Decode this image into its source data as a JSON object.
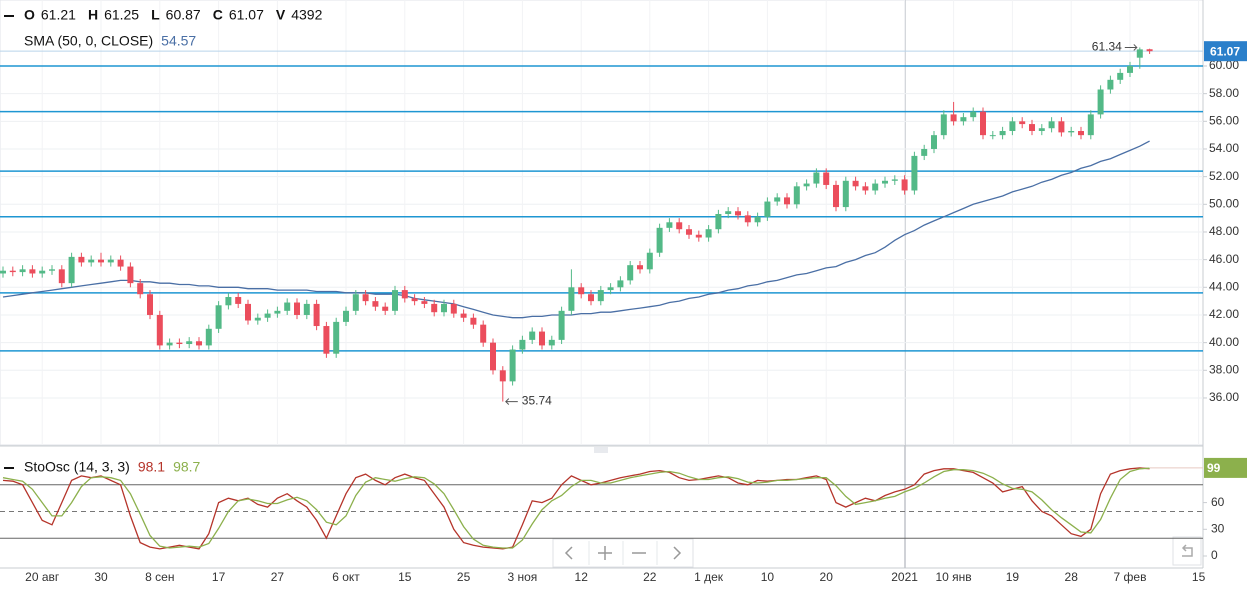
{
  "chart_data": [
    {
      "type": "candlestick",
      "header": [
        {
          "label": "O",
          "value": 61.21
        },
        {
          "label": "H",
          "value": 61.25
        },
        {
          "label": "L",
          "value": 60.87
        },
        {
          "label": "C",
          "value": 61.07
        },
        {
          "label": "V",
          "value": 4392
        }
      ],
      "categories": [
        null,
        null,
        null,
        null,
        "20 авг",
        null,
        null,
        null,
        null,
        null,
        "30",
        null,
        null,
        null,
        null,
        null,
        "8 сен",
        null,
        null,
        null,
        null,
        null,
        "17",
        null,
        null,
        null,
        null,
        null,
        "27",
        null,
        null,
        null,
        null,
        null,
        null,
        "6 окт",
        null,
        null,
        null,
        null,
        null,
        "15",
        null,
        null,
        null,
        null,
        null,
        "25",
        null,
        null,
        null,
        null,
        null,
        "3 ноя",
        null,
        null,
        null,
        null,
        null,
        "12",
        null,
        null,
        null,
        null,
        null,
        null,
        "22",
        null,
        null,
        null,
        null,
        null,
        "1 дек",
        null,
        null,
        null,
        null,
        null,
        "10",
        null,
        null,
        null,
        null,
        null,
        "20",
        null,
        null,
        null,
        null,
        null,
        null,
        null,
        "2021",
        null,
        null,
        null,
        null,
        "10 янв",
        null,
        null,
        null,
        null,
        null,
        "19",
        null,
        null,
        null,
        null,
        null,
        "28",
        null,
        null,
        null,
        null,
        null,
        "7 фев",
        null,
        null,
        null,
        null,
        null,
        null,
        "15"
      ],
      "open": [
        45.0,
        45.2,
        45.1,
        45.3,
        45.0,
        45.2,
        45.3,
        44.3,
        46.2,
        45.8,
        46.0,
        45.8,
        46.0,
        45.5,
        44.3,
        43.5,
        42.0,
        39.8,
        40.0,
        39.9,
        40.1,
        39.8,
        41.0,
        42.7,
        43.3,
        42.8,
        41.6,
        41.8,
        42.1,
        42.3,
        42.9,
        42.0,
        42.8,
        41.2,
        39.2,
        41.5,
        42.3,
        43.5,
        43.0,
        42.6,
        42.3,
        43.8,
        43.2,
        43.0,
        42.8,
        42.2,
        42.8,
        42.1,
        41.8,
        41.3,
        40.0,
        38.0,
        37.2,
        39.5,
        40.2,
        40.8,
        39.8,
        40.2,
        42.3,
        44.0,
        43.5,
        43.0,
        43.8,
        44.0,
        44.5,
        45.6,
        45.3,
        46.5,
        48.3,
        48.7,
        48.2,
        47.8,
        47.6,
        48.2,
        49.3,
        49.5,
        49.2,
        48.7,
        49.1,
        50.2,
        50.5,
        50.0,
        51.3,
        51.5,
        52.3,
        51.4,
        49.8,
        51.7,
        51.3,
        51.0,
        51.5,
        51.7,
        51.8,
        51.0,
        53.5,
        54.0,
        55.0,
        56.5,
        56.0,
        56.3,
        56.7,
        55.0,
        55.0,
        55.3,
        56.0,
        55.8,
        55.3,
        55.5,
        56.0,
        55.2,
        55.3,
        55.0,
        56.5,
        58.3,
        59.0,
        59.5,
        60.6,
        61.21,
        null,
        null,
        null,
        null,
        null
      ],
      "high": [
        45.5,
        45.5,
        45.6,
        45.6,
        45.5,
        45.6,
        45.6,
        46.5,
        46.5,
        46.3,
        46.5,
        46.3,
        46.3,
        45.8,
        44.6,
        43.8,
        42.3,
        40.3,
        40.3,
        40.4,
        40.4,
        41.3,
        43.0,
        43.6,
        43.6,
        43.1,
        42.1,
        42.4,
        42.6,
        43.2,
        43.2,
        43.1,
        43.1,
        41.5,
        41.8,
        42.6,
        43.8,
        43.8,
        43.3,
        42.9,
        44.1,
        44.1,
        43.5,
        43.3,
        43.1,
        43.1,
        43.1,
        42.4,
        42.1,
        41.6,
        40.3,
        38.3,
        39.8,
        40.5,
        41.1,
        41.1,
        40.5,
        42.6,
        45.3,
        44.3,
        43.8,
        44.1,
        44.3,
        44.8,
        45.9,
        45.9,
        46.8,
        48.6,
        49.0,
        49.0,
        48.5,
        48.1,
        48.5,
        49.6,
        49.8,
        49.8,
        49.5,
        49.4,
        50.5,
        50.8,
        50.8,
        51.6,
        51.8,
        52.6,
        52.6,
        51.7,
        52.0,
        52.0,
        51.6,
        51.8,
        52.0,
        52.1,
        52.1,
        53.8,
        54.3,
        55.3,
        56.8,
        57.4,
        56.6,
        57.0,
        57.0,
        55.3,
        55.6,
        56.3,
        56.3,
        56.1,
        55.8,
        56.3,
        56.3,
        55.6,
        55.6,
        56.8,
        58.6,
        59.3,
        59.8,
        60.3,
        61.34,
        61.25,
        null,
        null,
        null,
        null,
        null
      ],
      "low": [
        44.7,
        44.8,
        44.8,
        44.7,
        44.7,
        44.9,
        44.0,
        44.0,
        45.5,
        45.5,
        45.5,
        45.5,
        45.2,
        44.0,
        43.2,
        41.7,
        39.5,
        39.5,
        39.6,
        39.6,
        39.5,
        39.5,
        40.7,
        42.4,
        42.5,
        41.3,
        41.3,
        41.5,
        41.8,
        42.0,
        41.7,
        41.7,
        40.9,
        38.9,
        38.9,
        41.2,
        42.0,
        42.7,
        42.3,
        42.0,
        42.0,
        42.9,
        42.7,
        42.5,
        41.9,
        41.9,
        41.8,
        41.5,
        41.0,
        39.7,
        37.7,
        35.74,
        36.9,
        39.2,
        39.9,
        39.5,
        39.5,
        39.9,
        42.0,
        43.2,
        42.7,
        42.7,
        43.5,
        43.7,
        44.2,
        45.0,
        45.0,
        46.2,
        48.0,
        47.9,
        47.5,
        47.3,
        47.3,
        47.9,
        49.0,
        48.9,
        48.4,
        48.4,
        48.8,
        49.9,
        49.7,
        49.7,
        51.0,
        51.2,
        51.1,
        49.5,
        49.5,
        51.0,
        50.7,
        50.7,
        51.2,
        51.4,
        50.7,
        50.7,
        53.2,
        53.7,
        54.7,
        55.7,
        55.7,
        56.0,
        54.7,
        54.7,
        54.7,
        55.0,
        55.5,
        55.0,
        55.0,
        55.2,
        54.9,
        54.9,
        54.7,
        54.7,
        56.2,
        58.0,
        58.7,
        59.2,
        59.8,
        60.87,
        null,
        null,
        null,
        null,
        null
      ],
      "close": [
        45.2,
        45.1,
        45.3,
        45.0,
        45.2,
        45.3,
        44.3,
        46.2,
        45.8,
        46.0,
        45.8,
        46.0,
        45.5,
        44.3,
        43.5,
        42.0,
        39.8,
        40.0,
        39.9,
        40.1,
        39.8,
        41.0,
        42.7,
        43.3,
        42.8,
        41.6,
        41.8,
        42.1,
        42.3,
        42.9,
        42.0,
        42.8,
        41.2,
        39.2,
        41.5,
        42.3,
        43.5,
        43.0,
        42.6,
        42.3,
        43.8,
        43.2,
        43.0,
        42.8,
        42.2,
        42.8,
        42.1,
        41.8,
        41.3,
        40.0,
        38.0,
        37.2,
        39.5,
        40.2,
        40.8,
        39.8,
        40.2,
        42.3,
        44.0,
        43.5,
        43.0,
        43.8,
        44.0,
        44.5,
        45.6,
        45.3,
        46.5,
        48.3,
        48.7,
        48.2,
        47.8,
        47.6,
        48.2,
        49.3,
        49.5,
        49.2,
        48.7,
        49.1,
        50.2,
        50.5,
        50.0,
        51.3,
        51.5,
        52.3,
        51.4,
        49.8,
        51.7,
        51.3,
        51.0,
        51.5,
        51.7,
        51.8,
        51.0,
        53.5,
        54.0,
        55.0,
        56.5,
        56.0,
        56.3,
        56.7,
        55.0,
        55.0,
        55.3,
        56.0,
        55.8,
        55.3,
        55.5,
        56.0,
        55.2,
        55.3,
        55.0,
        56.5,
        58.3,
        59.0,
        59.5,
        60.0,
        61.2,
        61.07,
        null,
        null,
        null,
        null,
        null
      ],
      "up_color": "#53b987",
      "down_color": "#eb4d5c",
      "series": [
        {
          "name": "SMA (50, 0, CLOSE)",
          "color": "#4a6fa5",
          "last_value": 54.57,
          "values": [
            43.3,
            43.4,
            43.5,
            43.6,
            43.7,
            43.8,
            43.9,
            44.0,
            44.1,
            44.2,
            44.3,
            44.4,
            44.5,
            44.5,
            44.4,
            44.4,
            44.3,
            44.3,
            44.2,
            44.2,
            44.1,
            44.1,
            44.0,
            44.0,
            44.0,
            43.9,
            43.9,
            43.9,
            43.8,
            43.8,
            43.8,
            43.8,
            43.7,
            43.7,
            43.7,
            43.6,
            43.6,
            43.6,
            43.5,
            43.5,
            43.5,
            43.4,
            43.2,
            43.1,
            43.0,
            42.9,
            42.8,
            42.6,
            42.4,
            42.2,
            42.0,
            41.9,
            41.8,
            41.8,
            41.9,
            41.9,
            42.0,
            42.0,
            42.0,
            42.1,
            42.1,
            42.2,
            42.2,
            42.3,
            42.4,
            42.5,
            42.6,
            42.7,
            42.9,
            43.0,
            43.2,
            43.3,
            43.5,
            43.6,
            43.8,
            43.9,
            44.1,
            44.2,
            44.4,
            44.5,
            44.7,
            44.9,
            45.0,
            45.2,
            45.4,
            45.5,
            45.8,
            46.0,
            46.3,
            46.5,
            46.9,
            47.4,
            47.8,
            48.1,
            48.5,
            48.8,
            49.1,
            49.4,
            49.7,
            50.0,
            50.2,
            50.4,
            50.6,
            50.9,
            51.1,
            51.3,
            51.6,
            51.8,
            52.1,
            52.3,
            52.6,
            52.8,
            53.1,
            53.3,
            53.6,
            53.9,
            54.2,
            54.57,
            null,
            null,
            null,
            null,
            null
          ]
        }
      ],
      "levels": [
        60.0,
        56.7,
        52.4,
        49.1,
        43.6,
        39.4
      ],
      "levels_color": "#1e96d2",
      "last_price": 61.07,
      "annotations": [
        {
          "value": 61.34,
          "index": 116,
          "side": "left"
        },
        {
          "value": 35.74,
          "index": 51,
          "side": "right"
        }
      ],
      "ylim": [
        32.6,
        64.77
      ],
      "yticks": [
        {
          "value": 36,
          "label": "36.00"
        },
        {
          "value": 38,
          "label": "38.00"
        },
        {
          "value": 40,
          "label": "40.00"
        },
        {
          "value": 42,
          "label": "42.00"
        },
        {
          "value": 44,
          "label": "44.00"
        },
        {
          "value": 46,
          "label": "46.00"
        },
        {
          "value": 48,
          "label": "48.00"
        },
        {
          "value": 50,
          "label": "50.00"
        },
        {
          "value": 52,
          "label": "52.00"
        },
        {
          "value": 54,
          "label": "54.00"
        },
        {
          "value": 56,
          "label": "56.00"
        },
        {
          "value": 58,
          "label": "58.00"
        },
        {
          "value": 60,
          "label": "60.00"
        }
      ],
      "grid": true
    },
    {
      "type": "line",
      "title": "StoOsc (14, 3, 3)",
      "series": [
        {
          "color": "#b5342a",
          "last_value": 98.1,
          "values": [
            85,
            84,
            80,
            60,
            40,
            35,
            60,
            85,
            90,
            88,
            90,
            85,
            80,
            45,
            15,
            10,
            8,
            10,
            12,
            10,
            8,
            25,
            60,
            65,
            62,
            65,
            58,
            55,
            65,
            70,
            62,
            55,
            40,
            20,
            45,
            70,
            88,
            92,
            85,
            80,
            88,
            92,
            88,
            85,
            70,
            55,
            30,
            15,
            12,
            10,
            9,
            8,
            10,
            35,
            62,
            60,
            65,
            80,
            90,
            85,
            80,
            82,
            85,
            88,
            90,
            92,
            95,
            96,
            94,
            88,
            85,
            86,
            88,
            90,
            88,
            82,
            80,
            85,
            84,
            85,
            86,
            86,
            88,
            90,
            86,
            60,
            55,
            60,
            65,
            62,
            68,
            72,
            75,
            80,
            92,
            96,
            98,
            98,
            96,
            94,
            88,
            82,
            72,
            75,
            78,
            62,
            50,
            45,
            35,
            25,
            22,
            30,
            70,
            92,
            96,
            98,
            99,
            98.1,
            null,
            null,
            null,
            null,
            null
          ]
        },
        {
          "color": "#8cb04c",
          "last_value": 98.7,
          "values": [
            88,
            86,
            84,
            75,
            60,
            45,
            45,
            60,
            78,
            88,
            89,
            88,
            85,
            70,
            47,
            23,
            11,
            9,
            10,
            11,
            10,
            14,
            31,
            50,
            62,
            64,
            62,
            59,
            59,
            63,
            66,
            62,
            52,
            38,
            35,
            45,
            68,
            83,
            88,
            86,
            84,
            87,
            89,
            88,
            81,
            70,
            52,
            33,
            19,
            12,
            10,
            9,
            9,
            18,
            36,
            52,
            62,
            68,
            78,
            85,
            85,
            82,
            82,
            85,
            88,
            90,
            92,
            94,
            95,
            93,
            89,
            86,
            86,
            88,
            89,
            87,
            83,
            82,
            83,
            85,
            85,
            86,
            87,
            88,
            88,
            79,
            67,
            58,
            60,
            62,
            65,
            67,
            72,
            76,
            82,
            89,
            95,
            97,
            97,
            96,
            93,
            88,
            81,
            76,
            75,
            72,
            63,
            52,
            43,
            35,
            27,
            26,
            41,
            65,
            86,
            95,
            98,
            98.7,
            null,
            null,
            null,
            null,
            null
          ]
        }
      ],
      "value_box": 99,
      "levels": [
        20,
        50,
        80
      ],
      "ylim": [
        -13.5,
        113.5
      ],
      "yticks": [
        0,
        30,
        60
      ]
    }
  ]
}
